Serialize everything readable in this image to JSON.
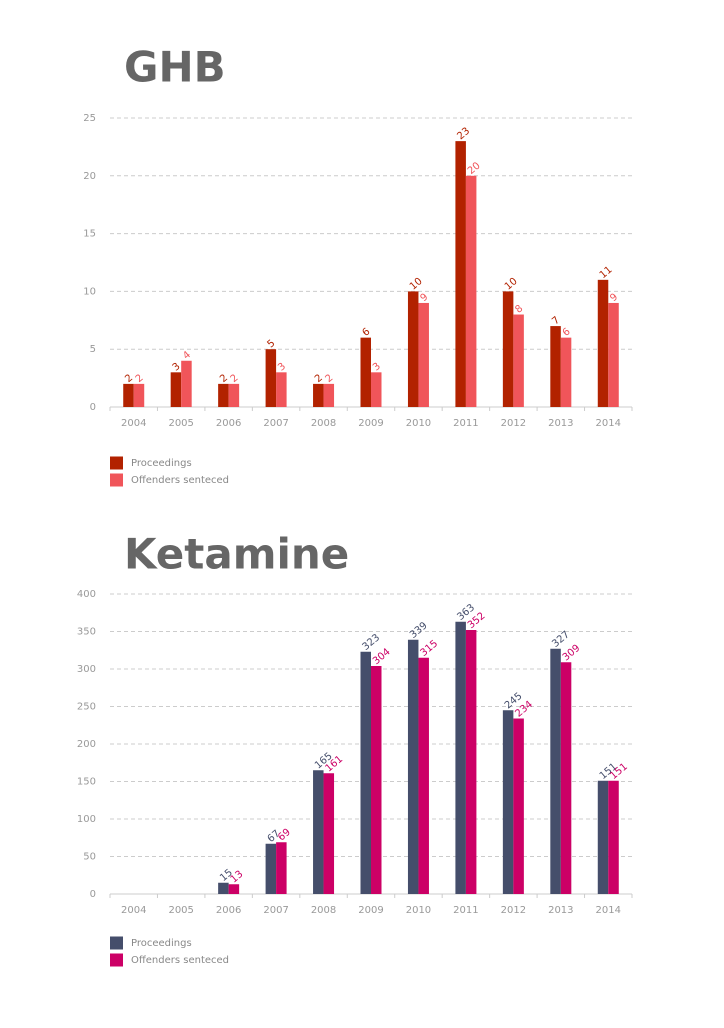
{
  "chart_data": [
    {
      "type": "bar",
      "title": "GHB",
      "categories": [
        "2004",
        "2005",
        "2006",
        "2007",
        "2008",
        "2009",
        "2010",
        "2011",
        "2012",
        "2013",
        "2014"
      ],
      "series": [
        {
          "name": "Proceedings",
          "color": "#b22200",
          "values": [
            2,
            3,
            2,
            5,
            2,
            6,
            10,
            23,
            10,
            7,
            11
          ]
        },
        {
          "name": "Offenders senteced",
          "color": "#f0555a",
          "values": [
            2,
            4,
            2,
            3,
            2,
            3,
            9,
            20,
            8,
            6,
            9
          ]
        }
      ],
      "ylim": [
        0,
        25
      ],
      "yticks": [
        0,
        5,
        10,
        15,
        20,
        25
      ],
      "grid": true
    },
    {
      "type": "bar",
      "title": "Ketamine",
      "categories": [
        "2004",
        "2005",
        "2006",
        "2007",
        "2008",
        "2009",
        "2010",
        "2011",
        "2012",
        "2013",
        "2014"
      ],
      "series": [
        {
          "name": "Proceedings",
          "color": "#454e6b",
          "values": [
            null,
            null,
            15,
            67,
            165,
            323,
            339,
            363,
            245,
            327,
            151
          ]
        },
        {
          "name": "Offenders senteced",
          "color": "#cc0066",
          "values": [
            null,
            null,
            13,
            69,
            161,
            304,
            315,
            352,
            234,
            309,
            151
          ]
        }
      ],
      "ylim": [
        0,
        400
      ],
      "yticks": [
        0,
        50,
        100,
        150,
        200,
        250,
        300,
        350,
        400
      ],
      "grid": true
    }
  ]
}
